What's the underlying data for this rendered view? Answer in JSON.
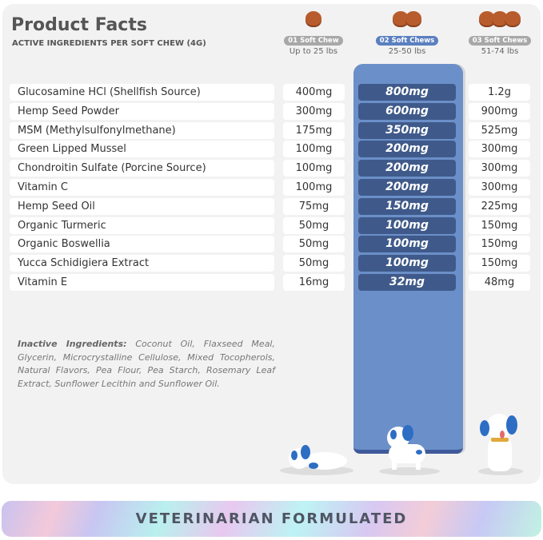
{
  "header": {
    "title": "Product Facts",
    "subtitle": "ACTIVE INGREDIENTS PER SOFT CHEW (4G)"
  },
  "columns": [
    {
      "label": "01 Soft Chew",
      "weight": "Up to 25 lbs",
      "chews": 1
    },
    {
      "label": "02 Soft Chews",
      "weight": "25-50 lbs",
      "chews": 2,
      "selected": true
    },
    {
      "label": "03 Soft Chews",
      "weight": "51-74 lbs",
      "chews": 3
    }
  ],
  "rows": [
    {
      "name": "Glucosamine HCl (Shellfish Source)",
      "v1": "400mg",
      "v2": "800mg",
      "v3": "1.2g"
    },
    {
      "name": "Hemp Seed Powder",
      "v1": "300mg",
      "v2": "600mg",
      "v3": "900mg"
    },
    {
      "name": "MSM (Methylsulfonylmethane)",
      "v1": "175mg",
      "v2": "350mg",
      "v3": "525mg"
    },
    {
      "name": "Green Lipped Mussel",
      "v1": "100mg",
      "v2": "200mg",
      "v3": "300mg"
    },
    {
      "name": "Chondroitin Sulfate (Porcine Source)",
      "v1": "100mg",
      "v2": "200mg",
      "v3": "300mg"
    },
    {
      "name": "Vitamin C",
      "v1": "100mg",
      "v2": "200mg",
      "v3": "300mg"
    },
    {
      "name": "Hemp Seed Oil",
      "v1": "75mg",
      "v2": "150mg",
      "v3": "225mg"
    },
    {
      "name": "Organic Turmeric",
      "v1": "50mg",
      "v2": "100mg",
      "v3": "150mg"
    },
    {
      "name": "Organic Boswellia",
      "v1": "50mg",
      "v2": "100mg",
      "v3": "150mg"
    },
    {
      "name": "Yucca Schidigiera Extract",
      "v1": "50mg",
      "v2": "100mg",
      "v3": "150mg"
    },
    {
      "name": "Vitamin E",
      "v1": "16mg",
      "v2": "32mg",
      "v3": "48mg"
    }
  ],
  "inactive": {
    "label": "Inactive Ingredients:",
    "text": " Coconut Oil, Flaxseed Meal, Glycerin, Microcrystalline Cellulose, Mixed Tocopherols, Natural Flavors, Pea Flour, Pea Starch, Rosemary Leaf Extract, Sunflower Lecithin and Sunflower Oil."
  },
  "banner": "VETERINARIAN FORMULATED",
  "colors": {
    "accent": "#6b8fc8",
    "cell_dark": "#3f5a8a",
    "chew": "#b85c2d"
  }
}
